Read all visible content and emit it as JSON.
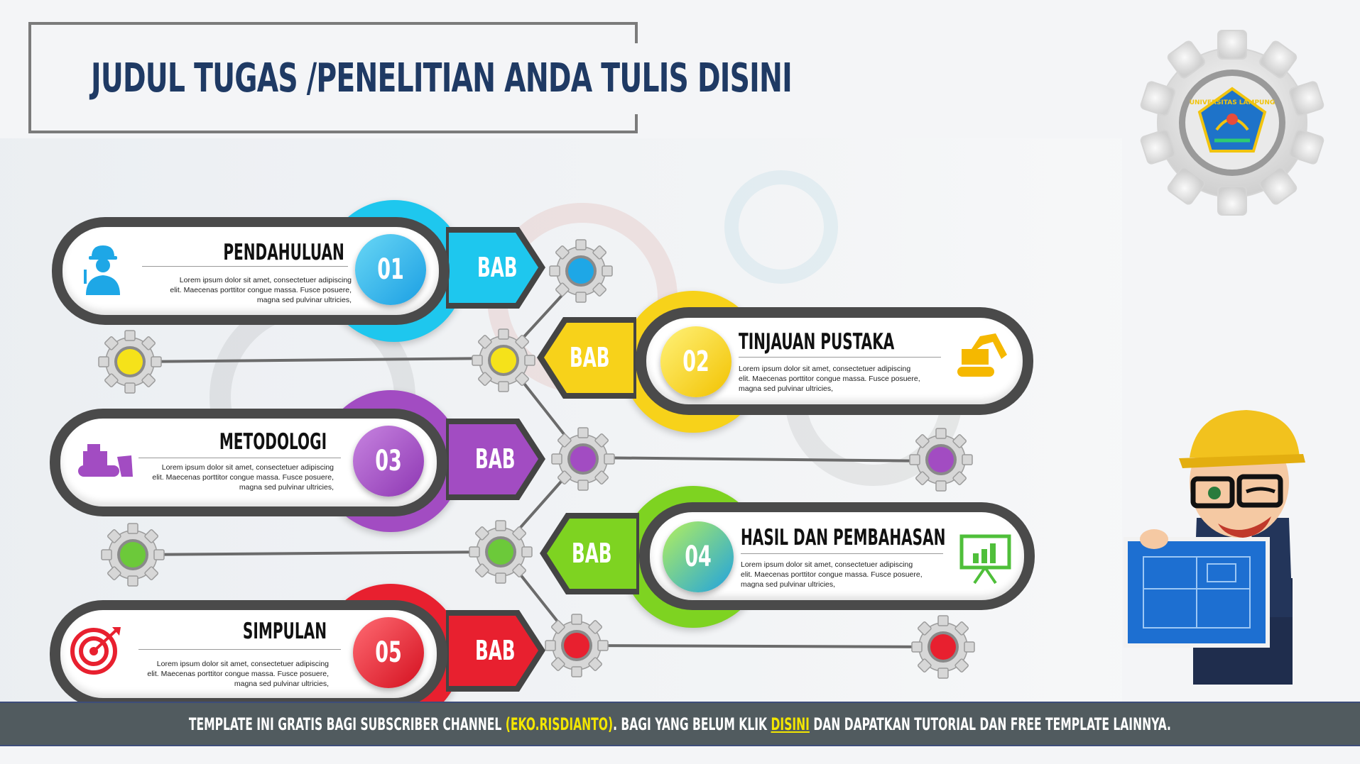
{
  "title": "JUDUL TUGAS /PENELITIAN ANDA TULIS DISINI",
  "logo_text": "UNIVERSITAS LAMPUNG",
  "bab_label": "BAB",
  "chapters": [
    {
      "number": "01",
      "title": "PENDAHULUAN",
      "desc": "Lorem ipsum dolor sit amet, consectetuer adipiscing elit. Maecenas porttitor congue massa. Fusce posuere, magna sed pulvinar ultricies,",
      "color": "#1ec7ee",
      "icon": "worker-icon"
    },
    {
      "number": "02",
      "title": "TINJAUAN PUSTAKA",
      "desc": "Lorem ipsum dolor sit amet, consectetuer adipiscing elit. Maecenas porttitor congue massa. Fusce posuere, magna sed pulvinar ultricies,",
      "color": "#f7d21a",
      "icon": "excavator-icon"
    },
    {
      "number": "03",
      "title": "METODOLOGI",
      "desc": "Lorem ipsum dolor sit amet, consectetuer adipiscing elit. Maecenas porttitor congue massa. Fusce posuere, magna sed pulvinar ultricies,",
      "color": "#a24cc2",
      "icon": "bulldozer-icon"
    },
    {
      "number": "04",
      "title": "HASIL DAN PEMBAHASAN",
      "desc": "Lorem ipsum dolor sit amet, consectetuer adipiscing elit. Maecenas porttitor congue massa. Fusce posuere, magna sed pulvinar ultricies,",
      "color": "#7ed321",
      "icon": "presentation-chart-icon"
    },
    {
      "number": "05",
      "title": "SIMPULAN",
      "desc": "Lorem ipsum dolor sit amet, consectetuer adipiscing elit. Maecenas porttitor congue massa. Fusce posuere, magna sed pulvinar ultricies,",
      "color": "#e8202f",
      "icon": "target-icon"
    }
  ],
  "footer": {
    "part1": "TEMPLATE INI GRATIS BAGI SUBSCRIBER CHANNEL ",
    "channel": "(EKO.RISDIANTO)",
    "part2": ".  BAGI YANG BELUM KLIK ",
    "link": "DISINI",
    "part3": "   DAN DAPATKAN TUTORIAL DAN FREE TEMPLATE LAINNYA."
  }
}
